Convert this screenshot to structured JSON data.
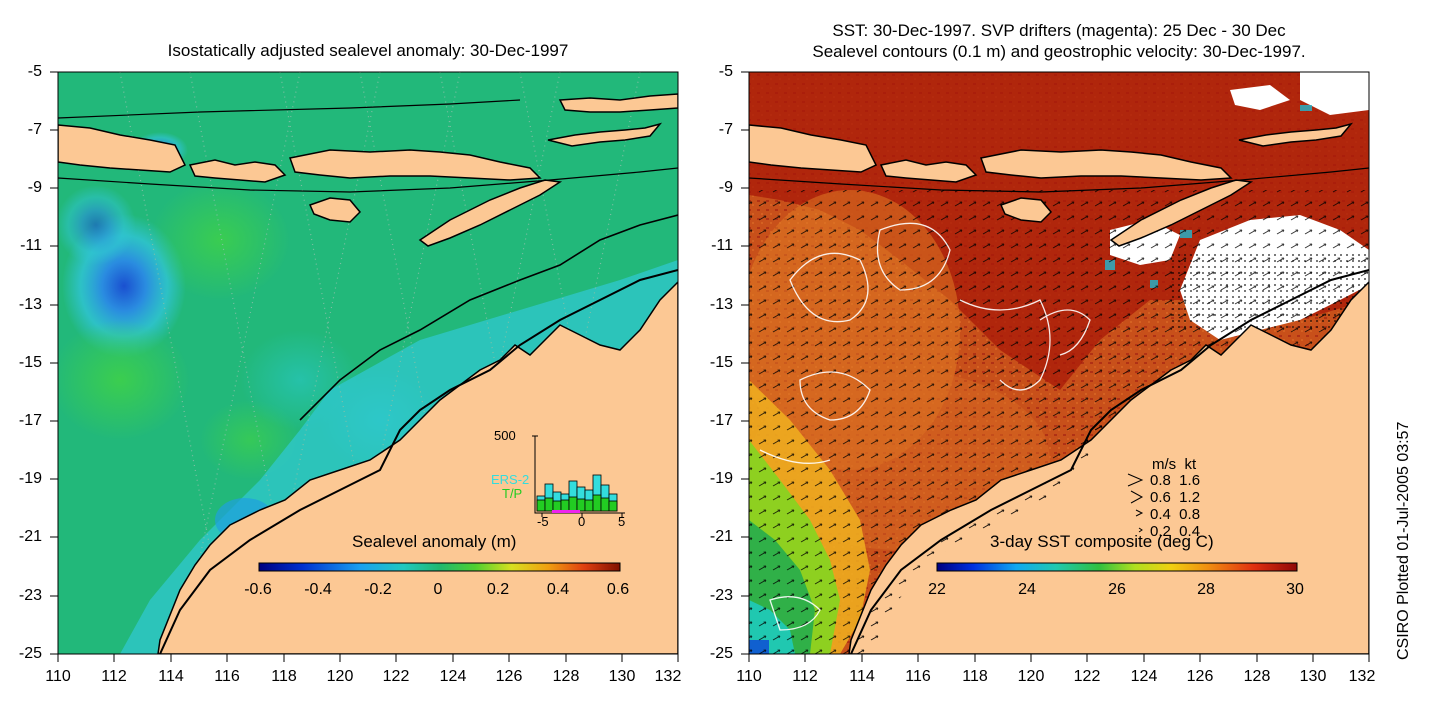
{
  "left_panel": {
    "title": "Isostatically adjusted sealevel anomaly: 30-Dec-1997",
    "colorbar": {
      "label": "Sealevel anomaly (m)",
      "ticks": [
        "-0.6",
        "-0.4",
        "-0.2",
        "0",
        "0.2",
        "0.4",
        "0.6"
      ]
    },
    "histogram": {
      "ymax_label": "500",
      "series_labels": [
        "ERS-2",
        "T/P"
      ],
      "series_colors": [
        "#33dddd",
        "#22cc22"
      ],
      "xticks": [
        "-5",
        "0",
        "5"
      ]
    }
  },
  "right_panel": {
    "title_line1": "SST: 30-Dec-1997. SVP drifters (magenta): 25 Dec - 30 Dec",
    "title_line2": "Sealevel contours (0.1 m) and geostrophic velocity: 30-Dec-1997.",
    "colorbar": {
      "label": "3-day SST composite (deg C)",
      "ticks": [
        "22",
        "24",
        "26",
        "28",
        "30"
      ]
    },
    "velocity_legend": {
      "header": "m/s  kt",
      "rows": [
        "0.8  1.6",
        "0.6  1.2",
        "0.4  0.8",
        "0.2  0.4"
      ]
    }
  },
  "axes": {
    "y_ticks": [
      "-5",
      "-7",
      "-9",
      "-11",
      "-13",
      "-15",
      "-17",
      "-19",
      "-21",
      "-23",
      "-25"
    ],
    "x_ticks": [
      "110",
      "112",
      "114",
      "116",
      "118",
      "120",
      "122",
      "124",
      "126",
      "128",
      "130",
      "132"
    ]
  },
  "credit": "CSIRO Plotted 01-Jul-2005 03:57",
  "colors": {
    "land": "#fcc894",
    "sea_green": "#22b87a",
    "sst_warm": "#c8501a",
    "sst_hot": "#a01808"
  }
}
